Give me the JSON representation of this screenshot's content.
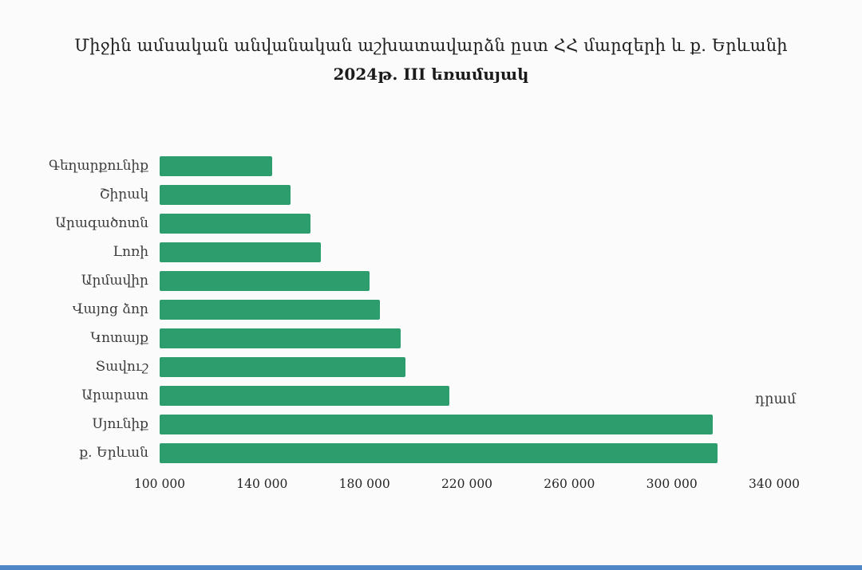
{
  "page": {
    "background": "#fbfbfb",
    "bottom_accent_color": "#4f86c6"
  },
  "chart_data": {
    "type": "bar",
    "orientation": "horizontal",
    "title": "Միջին ամսական անվանական աշխատավարձն ըստ ՀՀ  մարզերի և ք. Երևանի",
    "subtitle": "2024թ. III եռամսյակ",
    "unit_label": "դրամ",
    "categories": [
      "Գեղարքունիք",
      "Շիրակ",
      "Արագածոտն",
      "Լոռի",
      "Արմավիր",
      "Վայոց ձոր",
      "Կոտայք",
      "Տավուշ",
      "Արարատ",
      "Սյունիք",
      "ք. Երևան"
    ],
    "values": [
      144000,
      151000,
      159000,
      163000,
      182000,
      186000,
      194000,
      196000,
      213000,
      316000,
      318000
    ],
    "xlim": [
      100000,
      340000
    ],
    "xticks": [
      100000,
      140000,
      180000,
      220000,
      260000,
      300000,
      340000
    ],
    "xtick_labels": [
      "100 000",
      "140 000",
      "180 000",
      "220 000",
      "260 000",
      "300 000",
      "340 000"
    ],
    "bar_color": "#2e9d6e",
    "grid": false,
    "legend": false
  }
}
